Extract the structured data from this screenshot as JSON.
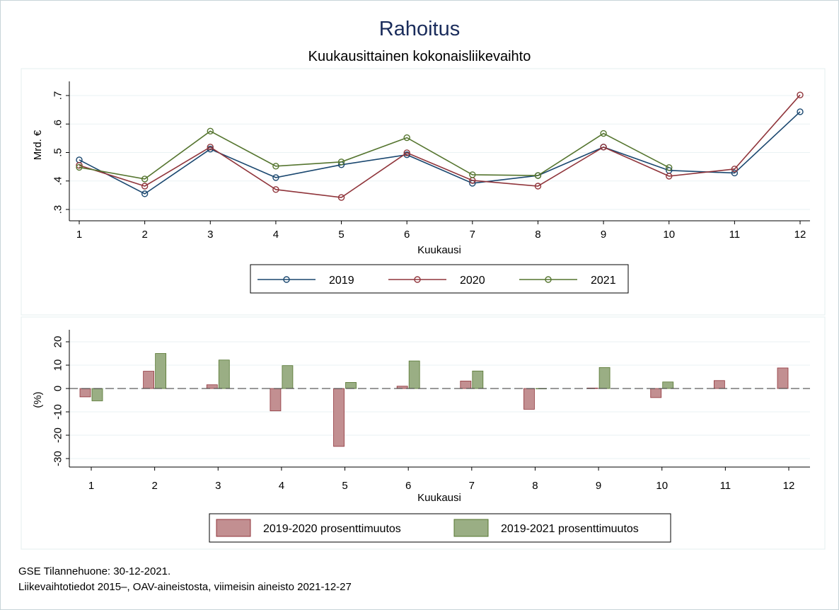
{
  "title": "Rahoitus",
  "subtitle": "Kuukausittainen kokonaisliikevaihto",
  "footer": [
    "GSE Tilannehuone: 30-12-2021.",
    "Liikevaihtotiedot 2015–, OAV-aineistosta, viimeisin aineisto 2021-12-27"
  ],
  "chart_data": [
    {
      "type": "line",
      "xlabel": "Kuukausi",
      "ylabel": "Mrd. €",
      "x": [
        1,
        2,
        3,
        4,
        5,
        6,
        7,
        8,
        9,
        10,
        11,
        12
      ],
      "ylim": [
        0.3,
        0.7
      ],
      "yticks": [
        0.3,
        0.4,
        0.5,
        0.6,
        0.7
      ],
      "ytick_labels": [
        ".3",
        ".4",
        ".5",
        ".6",
        ".7"
      ],
      "grid": true,
      "legend": "bottom",
      "series": [
        {
          "name": "2019",
          "color": "#1a476f",
          "values": [
            0.474,
            0.355,
            0.512,
            0.412,
            0.457,
            0.492,
            0.392,
            0.419,
            0.519,
            0.437,
            0.428,
            0.643
          ]
        },
        {
          "name": "2020",
          "color": "#90353b",
          "values": [
            0.455,
            0.382,
            0.519,
            0.37,
            0.342,
            0.499,
            0.402,
            0.382,
            0.519,
            0.417,
            0.442,
            0.702
          ]
        },
        {
          "name": "2021",
          "color": "#55752f",
          "values": [
            0.448,
            0.407,
            0.575,
            0.452,
            0.467,
            0.552,
            0.422,
            0.419,
            0.567,
            0.447,
            null,
            null
          ]
        }
      ]
    },
    {
      "type": "bar",
      "xlabel": "Kuukausi",
      "ylabel": "(%)",
      "categories": [
        "1",
        "2",
        "3",
        "4",
        "5",
        "6",
        "7",
        "8",
        "9",
        "10",
        "11",
        "12"
      ],
      "ylim": [
        -30,
        20
      ],
      "yticks": [
        -30,
        -20,
        -10,
        0,
        10,
        20
      ],
      "legend": "bottom",
      "series": [
        {
          "name": "2019-2020 prosenttimuutos",
          "color": "#c28f91",
          "border": "#90353b",
          "values": [
            -3.6,
            7.4,
            1.6,
            -9.6,
            -24.8,
            1.0,
            3.2,
            -8.9,
            0.2,
            -3.9,
            3.4,
            8.8
          ]
        },
        {
          "name": "2019-2021 prosenttimuutos",
          "color": "#9aae84",
          "border": "#55752f",
          "values": [
            -5.3,
            15.0,
            12.2,
            9.8,
            2.6,
            11.8,
            7.5,
            0.0,
            9.0,
            2.8,
            null,
            null
          ]
        }
      ]
    }
  ]
}
